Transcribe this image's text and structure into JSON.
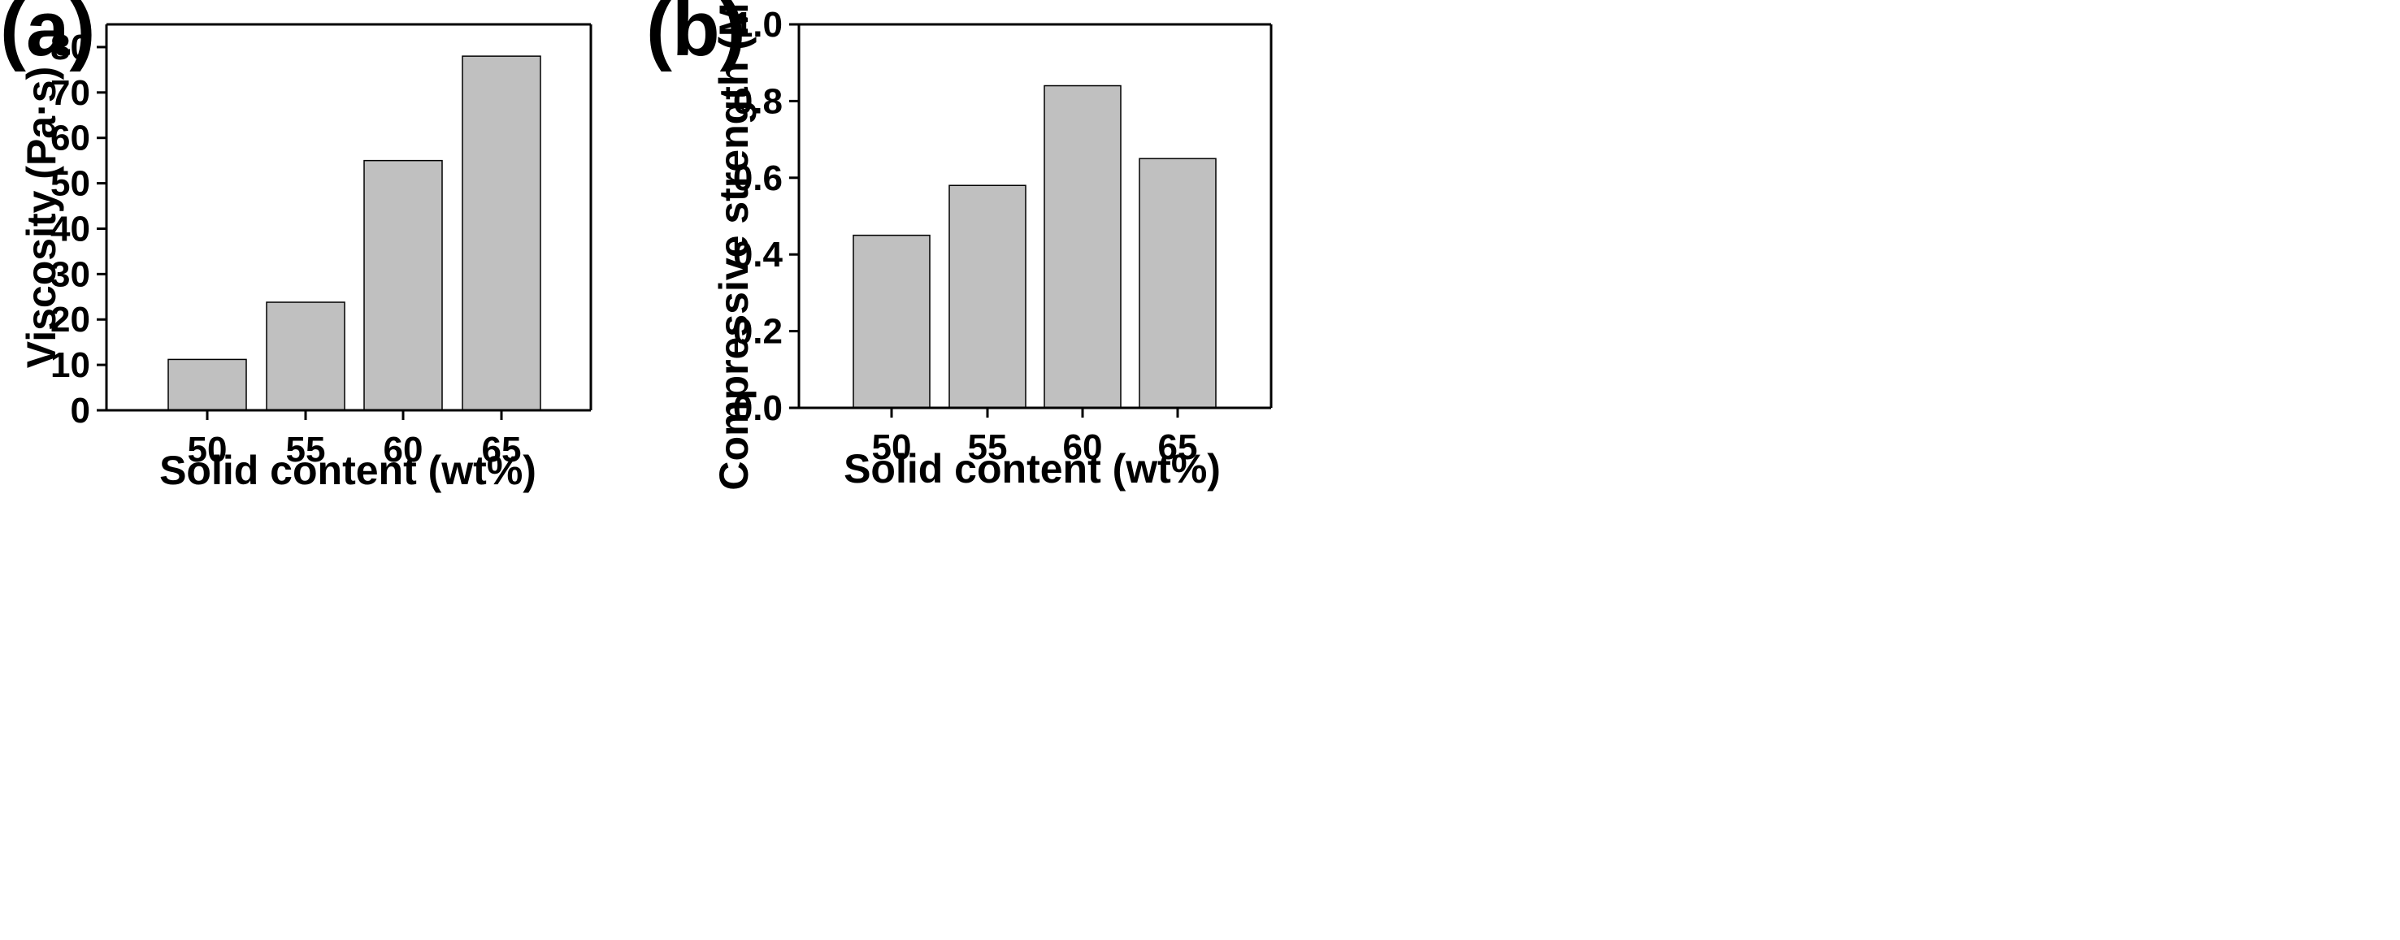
{
  "chart_data": [
    {
      "panel_label": "(a)",
      "type": "bar",
      "categories": [
        "50",
        "55",
        "60",
        "65"
      ],
      "values": [
        11.2,
        23.8,
        55,
        78
      ],
      "xlabel": "Solid content (wt%)",
      "ylabel": "Viscosity (Pa·s)",
      "ylim": [
        0,
        85
      ],
      "yticks": [
        0,
        10,
        20,
        30,
        40,
        50,
        60,
        70,
        80
      ],
      "ytick_decimals": 0,
      "bar_color": "#c0c0c0",
      "grid": false
    },
    {
      "panel_label": "(b)",
      "type": "bar",
      "categories": [
        "50",
        "55",
        "60",
        "65"
      ],
      "values": [
        0.45,
        0.58,
        0.84,
        0.65
      ],
      "xlabel": "Solid content (wt%)",
      "ylabel": "Compressive strength (Mpa)",
      "ylim": [
        0,
        1.0
      ],
      "yticks": [
        0.0,
        0.2,
        0.4,
        0.6,
        0.8,
        1.0
      ],
      "ytick_decimals": 1,
      "bar_color": "#c0c0c0",
      "grid": false
    }
  ]
}
